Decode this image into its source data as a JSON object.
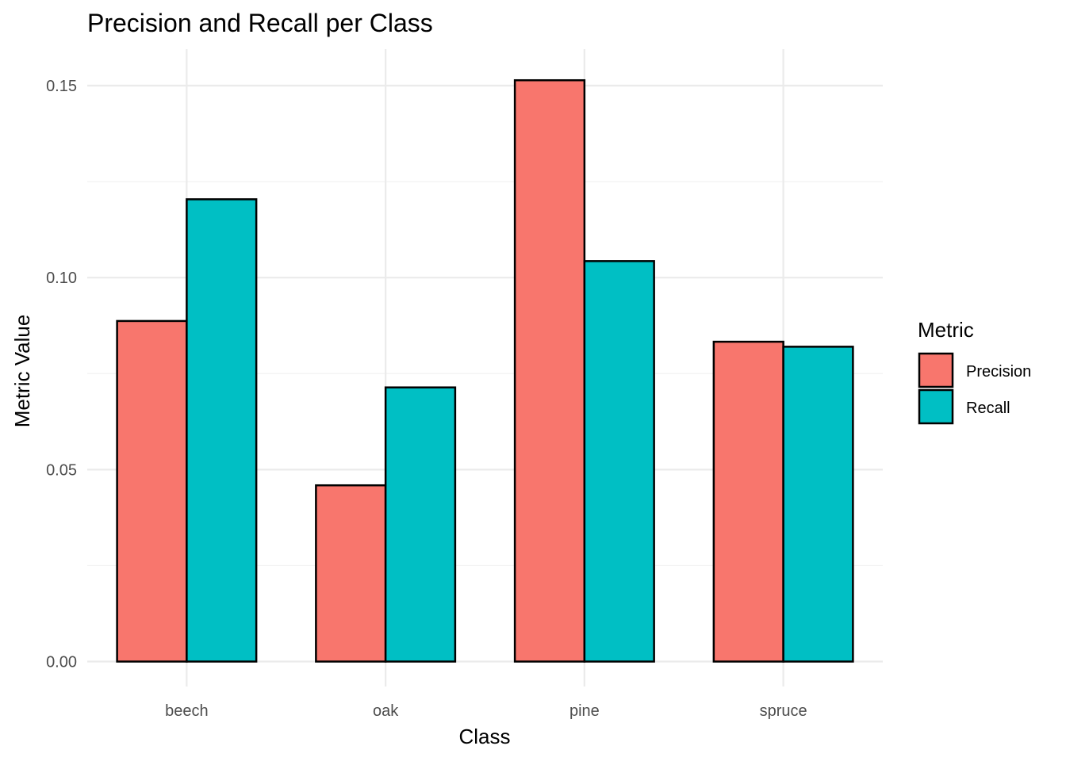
{
  "chart_data": {
    "type": "bar",
    "title": "Precision and Recall per Class",
    "xlabel": "Class",
    "ylabel": "Metric Value",
    "categories": [
      "beech",
      "oak",
      "pine",
      "spruce"
    ],
    "series": [
      {
        "name": "Precision",
        "color": "#F8766D",
        "values": [
          0.0887,
          0.0459,
          0.1514,
          0.0833
        ]
      },
      {
        "name": "Recall",
        "color": "#00BFC4",
        "values": [
          0.1204,
          0.0714,
          0.1043,
          0.082
        ]
      }
    ],
    "ylim": [
      -0.0065,
      0.1595
    ],
    "yticks": [
      0.0,
      0.05,
      0.1,
      0.15
    ],
    "ytick_labels": [
      "0.00",
      "0.05",
      "0.10",
      "0.15"
    ],
    "grid": true,
    "bar_outline_color": "#000000",
    "legend": {
      "title": "Metric",
      "position": "right"
    }
  }
}
